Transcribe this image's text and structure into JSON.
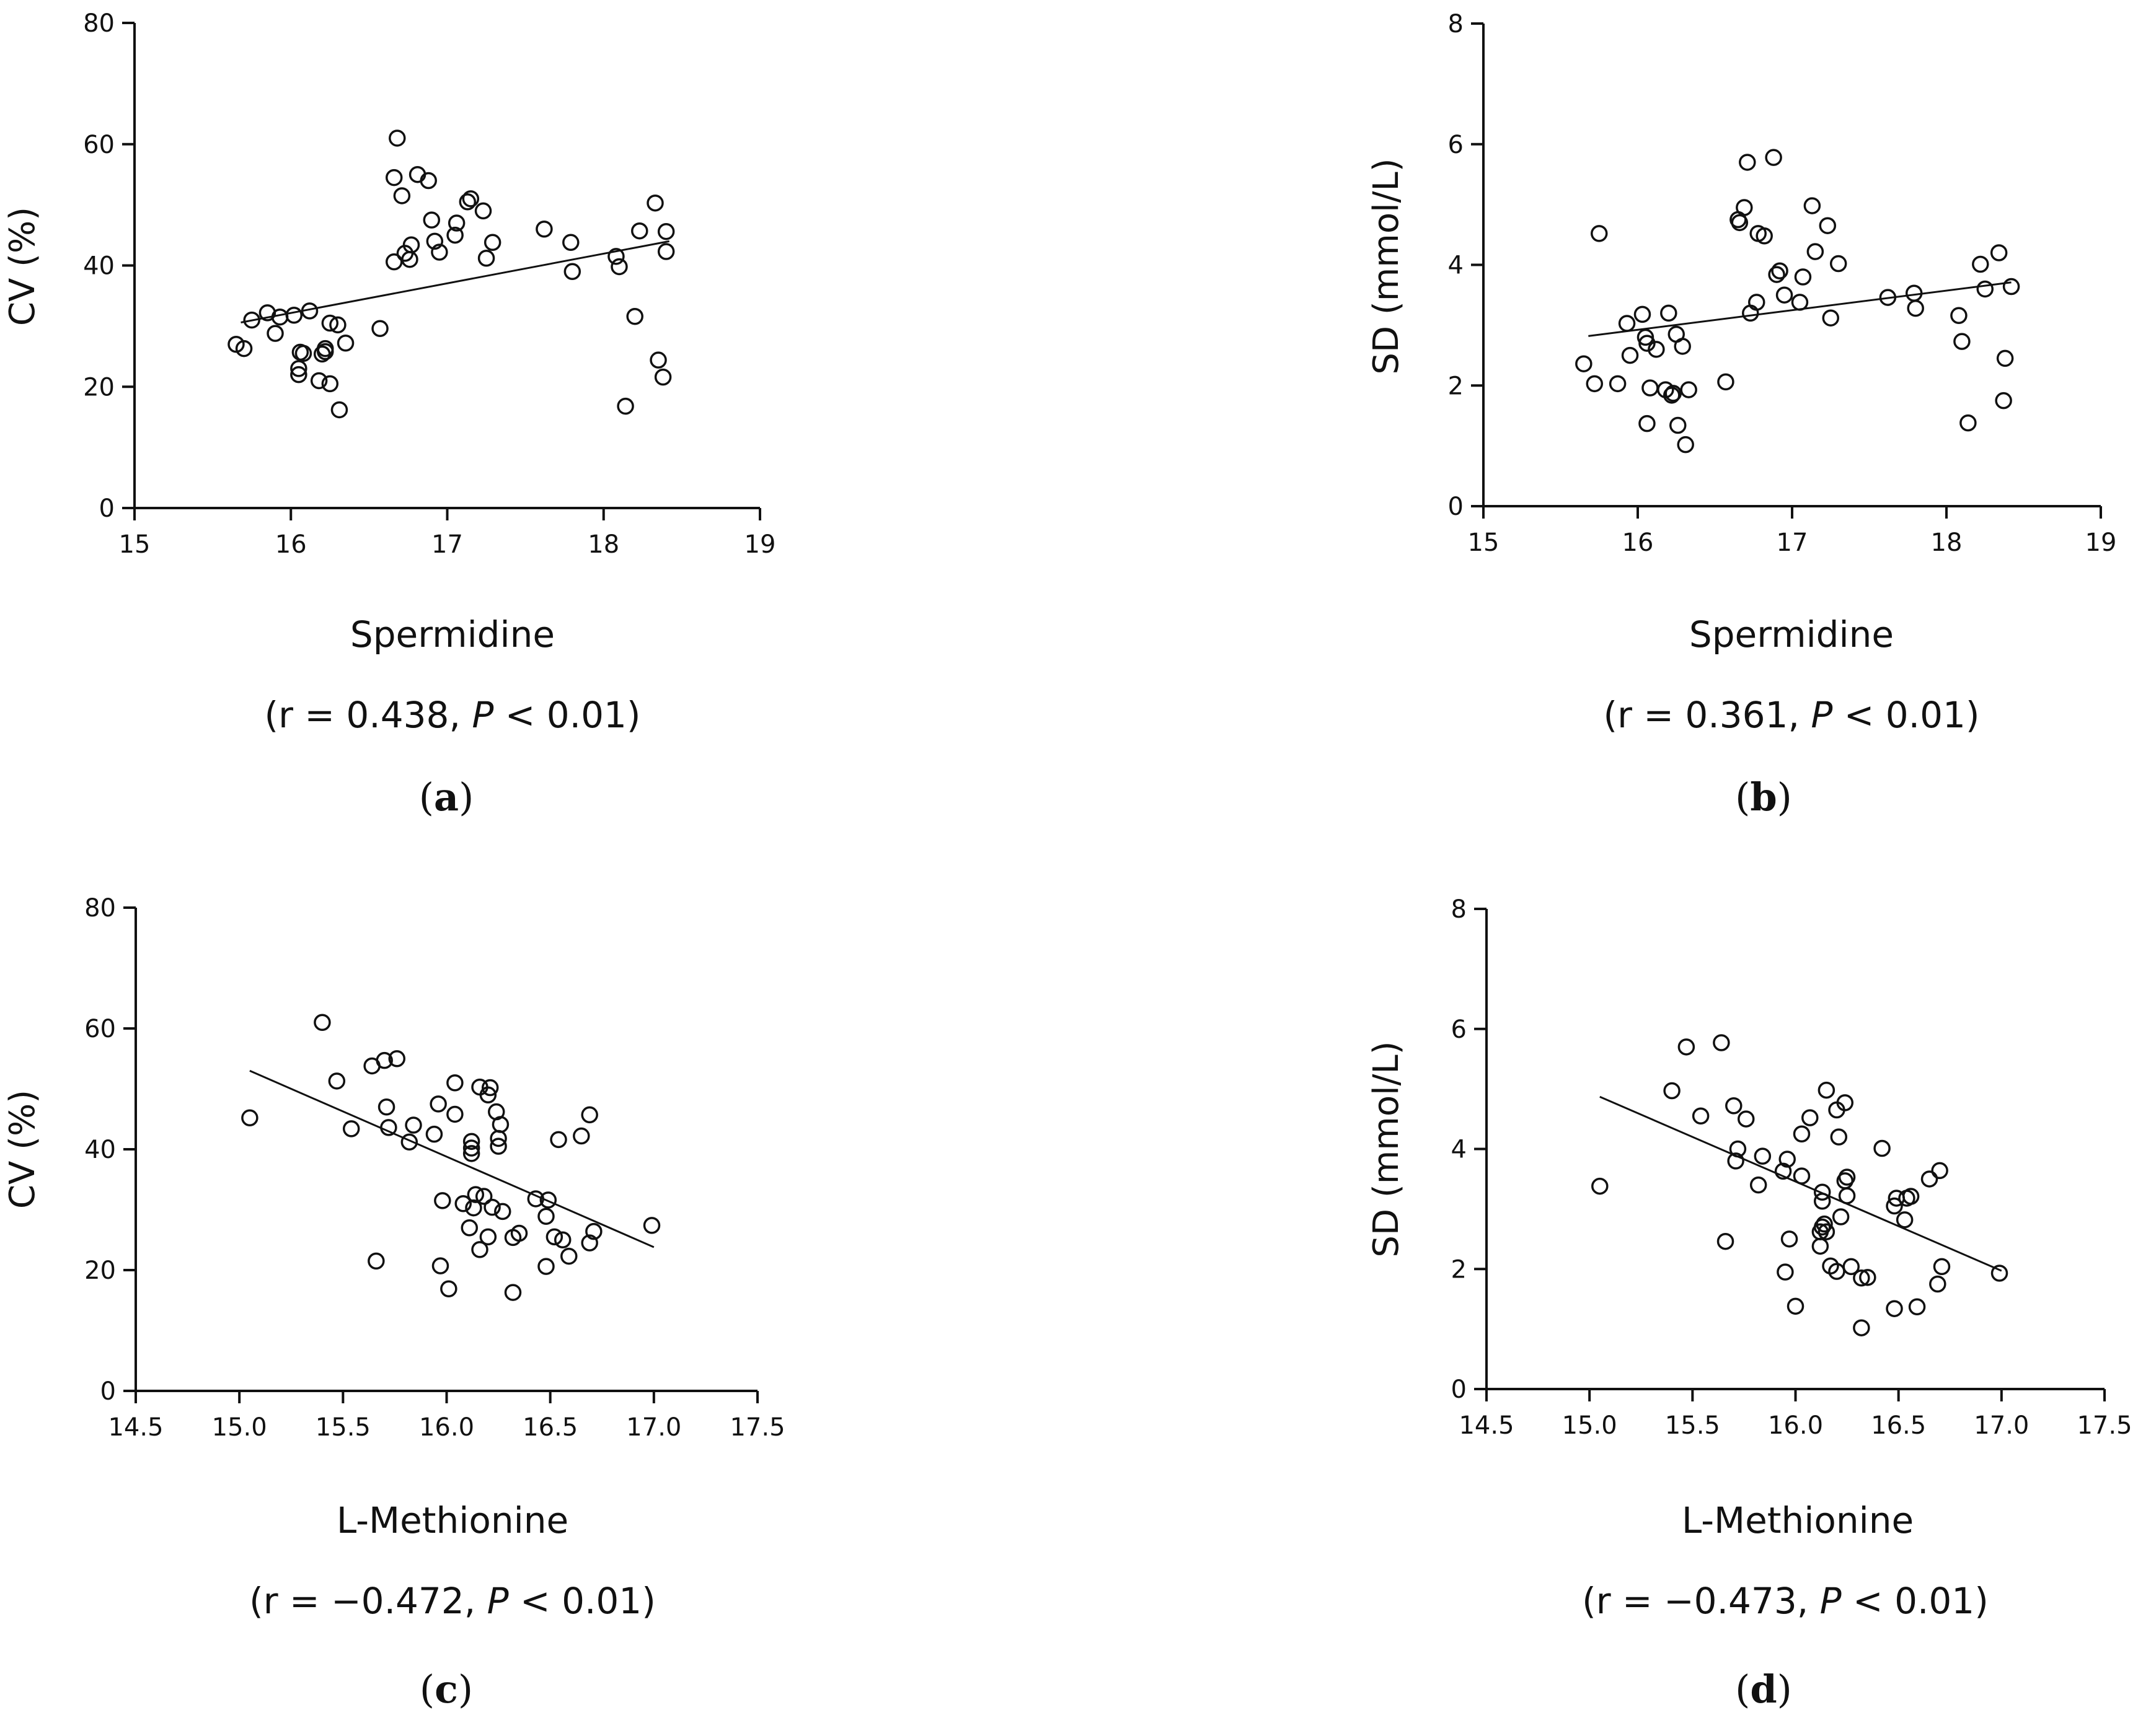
{
  "chart_data": [
    {
      "type": "scatter",
      "panel": "a",
      "xlabel": "Spermidine",
      "ylabel": "CV (%)",
      "xlim": [
        15,
        19
      ],
      "ylim": [
        0,
        80
      ],
      "xticks": [
        "15",
        "16",
        "17",
        "18",
        "19"
      ],
      "yticks": [
        "0",
        "20",
        "40",
        "60",
        "80"
      ],
      "stat": {
        "prefix": "(r = 0.438, ",
        "p": "P",
        "suffix": " < 0.01)"
      },
      "trendline": {
        "x": [
          15.68,
          18.42
        ],
        "y": [
          30.6,
          44.0
        ]
      },
      "points": [
        [
          15.65,
          27.0
        ],
        [
          15.7,
          26.3
        ],
        [
          15.75,
          31.0
        ],
        [
          15.85,
          32.2
        ],
        [
          15.9,
          28.8
        ],
        [
          15.93,
          31.5
        ],
        [
          16.02,
          31.8
        ],
        [
          16.05,
          22.0
        ],
        [
          16.05,
          23.0
        ],
        [
          16.06,
          25.7
        ],
        [
          16.08,
          25.5
        ],
        [
          16.12,
          32.5
        ],
        [
          16.18,
          21.0
        ],
        [
          16.2,
          25.4
        ],
        [
          16.22,
          25.8
        ],
        [
          16.22,
          26.3
        ],
        [
          16.25,
          20.5
        ],
        [
          16.25,
          30.5
        ],
        [
          16.3,
          30.2
        ],
        [
          16.31,
          16.2
        ],
        [
          16.35,
          27.2
        ],
        [
          16.57,
          29.6
        ],
        [
          16.66,
          54.5
        ],
        [
          16.66,
          40.6
        ],
        [
          16.68,
          61.0
        ],
        [
          16.71,
          51.5
        ],
        [
          16.73,
          42.0
        ],
        [
          16.76,
          41.0
        ],
        [
          16.77,
          43.4
        ],
        [
          16.81,
          55.0
        ],
        [
          16.88,
          54.0
        ],
        [
          16.9,
          47.5
        ],
        [
          16.92,
          44.0
        ],
        [
          16.95,
          42.2
        ],
        [
          17.05,
          45.0
        ],
        [
          17.06,
          47.0
        ],
        [
          17.13,
          50.5
        ],
        [
          17.15,
          51.0
        ],
        [
          17.23,
          49.0
        ],
        [
          17.25,
          41.2
        ],
        [
          17.29,
          43.8
        ],
        [
          17.62,
          46.0
        ],
        [
          17.79,
          43.8
        ],
        [
          17.8,
          39.0
        ],
        [
          18.08,
          41.5
        ],
        [
          18.1,
          39.8
        ],
        [
          18.14,
          16.8
        ],
        [
          18.2,
          31.6
        ],
        [
          18.23,
          45.7
        ],
        [
          18.33,
          50.3
        ],
        [
          18.35,
          24.4
        ],
        [
          18.38,
          21.6
        ],
        [
          18.4,
          45.6
        ],
        [
          18.4,
          42.3
        ]
      ]
    },
    {
      "type": "scatter",
      "panel": "b",
      "xlabel": "Spermidine",
      "ylabel": "SD (mmol/L)",
      "xlim": [
        15,
        19
      ],
      "ylim": [
        0,
        8
      ],
      "xticks": [
        "15",
        "16",
        "17",
        "18",
        "19"
      ],
      "yticks": [
        "0",
        "2",
        "4",
        "6",
        "8"
      ],
      "stat": {
        "prefix": "(r = 0.361, ",
        "p": "P",
        "suffix": " < 0.01)"
      },
      "trendline": {
        "x": [
          15.68,
          18.42
        ],
        "y": [
          2.82,
          3.71
        ]
      },
      "points": [
        [
          15.65,
          2.36
        ],
        [
          15.72,
          2.03
        ],
        [
          15.75,
          4.52
        ],
        [
          15.87,
          2.03
        ],
        [
          15.93,
          3.03
        ],
        [
          15.95,
          2.5
        ],
        [
          16.03,
          3.18
        ],
        [
          16.05,
          2.8
        ],
        [
          16.06,
          2.7
        ],
        [
          16.06,
          1.37
        ],
        [
          16.08,
          1.96
        ],
        [
          16.12,
          2.6
        ],
        [
          16.18,
          1.93
        ],
        [
          16.2,
          3.2
        ],
        [
          16.22,
          1.84
        ],
        [
          16.23,
          1.87
        ],
        [
          16.25,
          2.85
        ],
        [
          16.26,
          1.34
        ],
        [
          16.29,
          2.65
        ],
        [
          16.31,
          1.02
        ],
        [
          16.33,
          1.93
        ],
        [
          16.57,
          2.06
        ],
        [
          16.65,
          4.75
        ],
        [
          16.66,
          4.7
        ],
        [
          16.69,
          4.95
        ],
        [
          16.71,
          5.7
        ],
        [
          16.73,
          3.2
        ],
        [
          16.77,
          3.38
        ],
        [
          16.78,
          4.52
        ],
        [
          16.82,
          4.48
        ],
        [
          16.88,
          5.78
        ],
        [
          16.9,
          3.84
        ],
        [
          16.92,
          3.9
        ],
        [
          16.95,
          3.5
        ],
        [
          17.05,
          3.38
        ],
        [
          17.07,
          3.8
        ],
        [
          17.13,
          4.98
        ],
        [
          17.15,
          4.22
        ],
        [
          17.23,
          4.65
        ],
        [
          17.25,
          3.12
        ],
        [
          17.3,
          4.02
        ],
        [
          17.62,
          3.46
        ],
        [
          17.79,
          3.53
        ],
        [
          17.8,
          3.28
        ],
        [
          18.08,
          3.16
        ],
        [
          18.1,
          2.73
        ],
        [
          18.14,
          1.38
        ],
        [
          18.22,
          4.01
        ],
        [
          18.25,
          3.6
        ],
        [
          18.34,
          4.2
        ],
        [
          18.37,
          1.75
        ],
        [
          18.38,
          2.45
        ],
        [
          18.42,
          3.64
        ]
      ]
    },
    {
      "type": "scatter",
      "panel": "c",
      "xlabel": "L-Methionine",
      "ylabel": "CV (%)",
      "xlim": [
        14.5,
        17.5
      ],
      "ylim": [
        0,
        80
      ],
      "xticks": [
        "14.5",
        "15.0",
        "15.5",
        "16.0",
        "16.5",
        "17.0",
        "17.5"
      ],
      "yticks": [
        "0",
        "20",
        "40",
        "60",
        "80"
      ],
      "stat": {
        "prefix": "(r = −0.472, ",
        "p": "P",
        "suffix": " < 0.01)"
      },
      "trendline": {
        "x": [
          15.05,
          17.0
        ],
        "y": [
          53.0,
          23.8
        ]
      },
      "points": [
        [
          15.05,
          45.2
        ],
        [
          15.4,
          61.0
        ],
        [
          15.47,
          51.3
        ],
        [
          15.54,
          43.4
        ],
        [
          15.64,
          53.8
        ],
        [
          15.66,
          21.5
        ],
        [
          15.7,
          54.7
        ],
        [
          15.71,
          47.0
        ],
        [
          15.72,
          43.6
        ],
        [
          15.76,
          55.0
        ],
        [
          15.82,
          41.2
        ],
        [
          15.84,
          44.0
        ],
        [
          15.94,
          42.5
        ],
        [
          15.96,
          47.5
        ],
        [
          15.97,
          20.7
        ],
        [
          15.98,
          31.5
        ],
        [
          16.01,
          16.9
        ],
        [
          16.04,
          51.0
        ],
        [
          16.04,
          45.8
        ],
        [
          16.08,
          31.0
        ],
        [
          16.11,
          27.0
        ],
        [
          16.12,
          39.3
        ],
        [
          16.12,
          40.2
        ],
        [
          16.12,
          41.3
        ],
        [
          16.13,
          30.3
        ],
        [
          16.14,
          32.5
        ],
        [
          16.16,
          23.4
        ],
        [
          16.16,
          50.3
        ],
        [
          16.18,
          32.2
        ],
        [
          16.2,
          25.5
        ],
        [
          16.2,
          49.0
        ],
        [
          16.21,
          50.2
        ],
        [
          16.22,
          30.4
        ],
        [
          16.24,
          46.2
        ],
        [
          16.25,
          40.5
        ],
        [
          16.25,
          41.8
        ],
        [
          16.26,
          44.1
        ],
        [
          16.27,
          29.7
        ],
        [
          16.32,
          16.3
        ],
        [
          16.32,
          25.4
        ],
        [
          16.35,
          26.1
        ],
        [
          16.43,
          31.8
        ],
        [
          16.48,
          20.6
        ],
        [
          16.48,
          28.9
        ],
        [
          16.49,
          31.6
        ],
        [
          16.52,
          25.5
        ],
        [
          16.54,
          41.6
        ],
        [
          16.56,
          25.0
        ],
        [
          16.59,
          22.3
        ],
        [
          16.65,
          42.2
        ],
        [
          16.69,
          24.5
        ],
        [
          16.69,
          45.7
        ],
        [
          16.71,
          26.4
        ],
        [
          16.99,
          27.4
        ]
      ]
    },
    {
      "type": "scatter",
      "panel": "d",
      "xlabel": "L-Methionine",
      "ylabel": "SD (mmol/L)",
      "xlim": [
        14.5,
        17.5
      ],
      "ylim": [
        0,
        8
      ],
      "xticks": [
        "14.5",
        "15.0",
        "15.5",
        "16.0",
        "16.5",
        "17.0",
        "17.5"
      ],
      "yticks": [
        "0",
        "2",
        "4",
        "6",
        "8"
      ],
      "stat": {
        "prefix": "(r = −0.473, ",
        "p": "P",
        "suffix": " < 0.01)"
      },
      "trendline": {
        "x": [
          15.05,
          17.0
        ],
        "y": [
          4.87,
          1.97
        ]
      },
      "points": [
        [
          15.05,
          3.38
        ],
        [
          15.4,
          4.97
        ],
        [
          15.47,
          5.7
        ],
        [
          15.54,
          4.55
        ],
        [
          15.64,
          5.77
        ],
        [
          15.66,
          2.46
        ],
        [
          15.7,
          4.72
        ],
        [
          15.71,
          3.8
        ],
        [
          15.72,
          4.0
        ],
        [
          15.76,
          4.5
        ],
        [
          15.82,
          3.4
        ],
        [
          15.84,
          3.88
        ],
        [
          15.94,
          3.63
        ],
        [
          15.95,
          1.95
        ],
        [
          15.96,
          3.83
        ],
        [
          15.97,
          2.5
        ],
        [
          16.0,
          1.38
        ],
        [
          16.03,
          3.55
        ],
        [
          16.03,
          4.25
        ],
        [
          16.07,
          4.52
        ],
        [
          16.12,
          2.38
        ],
        [
          16.12,
          2.62
        ],
        [
          16.13,
          2.7
        ],
        [
          16.13,
          3.13
        ],
        [
          16.13,
          3.28
        ],
        [
          16.14,
          2.75
        ],
        [
          16.15,
          2.62
        ],
        [
          16.15,
          4.98
        ],
        [
          16.17,
          2.05
        ],
        [
          16.2,
          1.96
        ],
        [
          16.2,
          4.65
        ],
        [
          16.21,
          4.2
        ],
        [
          16.22,
          2.87
        ],
        [
          16.24,
          3.47
        ],
        [
          16.24,
          4.77
        ],
        [
          16.25,
          3.53
        ],
        [
          16.25,
          3.22
        ],
        [
          16.27,
          2.04
        ],
        [
          16.32,
          1.02
        ],
        [
          16.32,
          1.85
        ],
        [
          16.35,
          1.86
        ],
        [
          16.42,
          4.01
        ],
        [
          16.48,
          1.34
        ],
        [
          16.48,
          3.05
        ],
        [
          16.49,
          3.18
        ],
        [
          16.53,
          2.82
        ],
        [
          16.54,
          3.18
        ],
        [
          16.56,
          3.21
        ],
        [
          16.59,
          1.37
        ],
        [
          16.65,
          3.5
        ],
        [
          16.69,
          1.75
        ],
        [
          16.7,
          3.64
        ],
        [
          16.71,
          2.04
        ],
        [
          16.99,
          1.93
        ]
      ]
    }
  ],
  "panel_labels": {
    "a": "a",
    "b": "b",
    "c": "c",
    "d": "d"
  },
  "parens": {
    "open": "(",
    "close": ")"
  }
}
